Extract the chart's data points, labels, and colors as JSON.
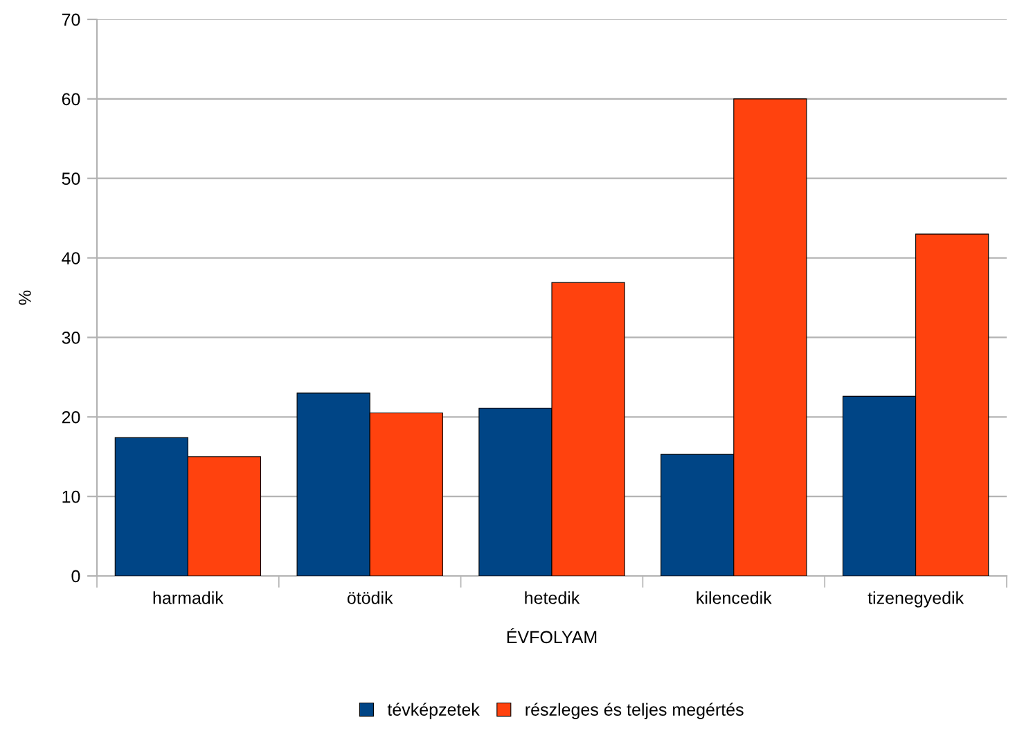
{
  "chart_data": {
    "type": "bar",
    "xlabel": "ÉVFOLYAM",
    "ylabel": "%",
    "categories": [
      "harmadik",
      "ötödik",
      "hetedik",
      "kilencedik",
      "tizenegyedik"
    ],
    "series": [
      {
        "name": "tévképzetek",
        "color": "#004586",
        "values": [
          17.4,
          23.0,
          21.1,
          15.3,
          22.6
        ]
      },
      {
        "name": "részleges és teljes megértés",
        "color": "#ff420e",
        "values": [
          15.0,
          20.5,
          36.9,
          60.0,
          43.0
        ]
      }
    ],
    "ylim": [
      0,
      70
    ],
    "yticks": [
      0,
      10,
      20,
      30,
      40,
      50,
      60,
      70
    ],
    "grid": "y",
    "legend": "bottom"
  }
}
